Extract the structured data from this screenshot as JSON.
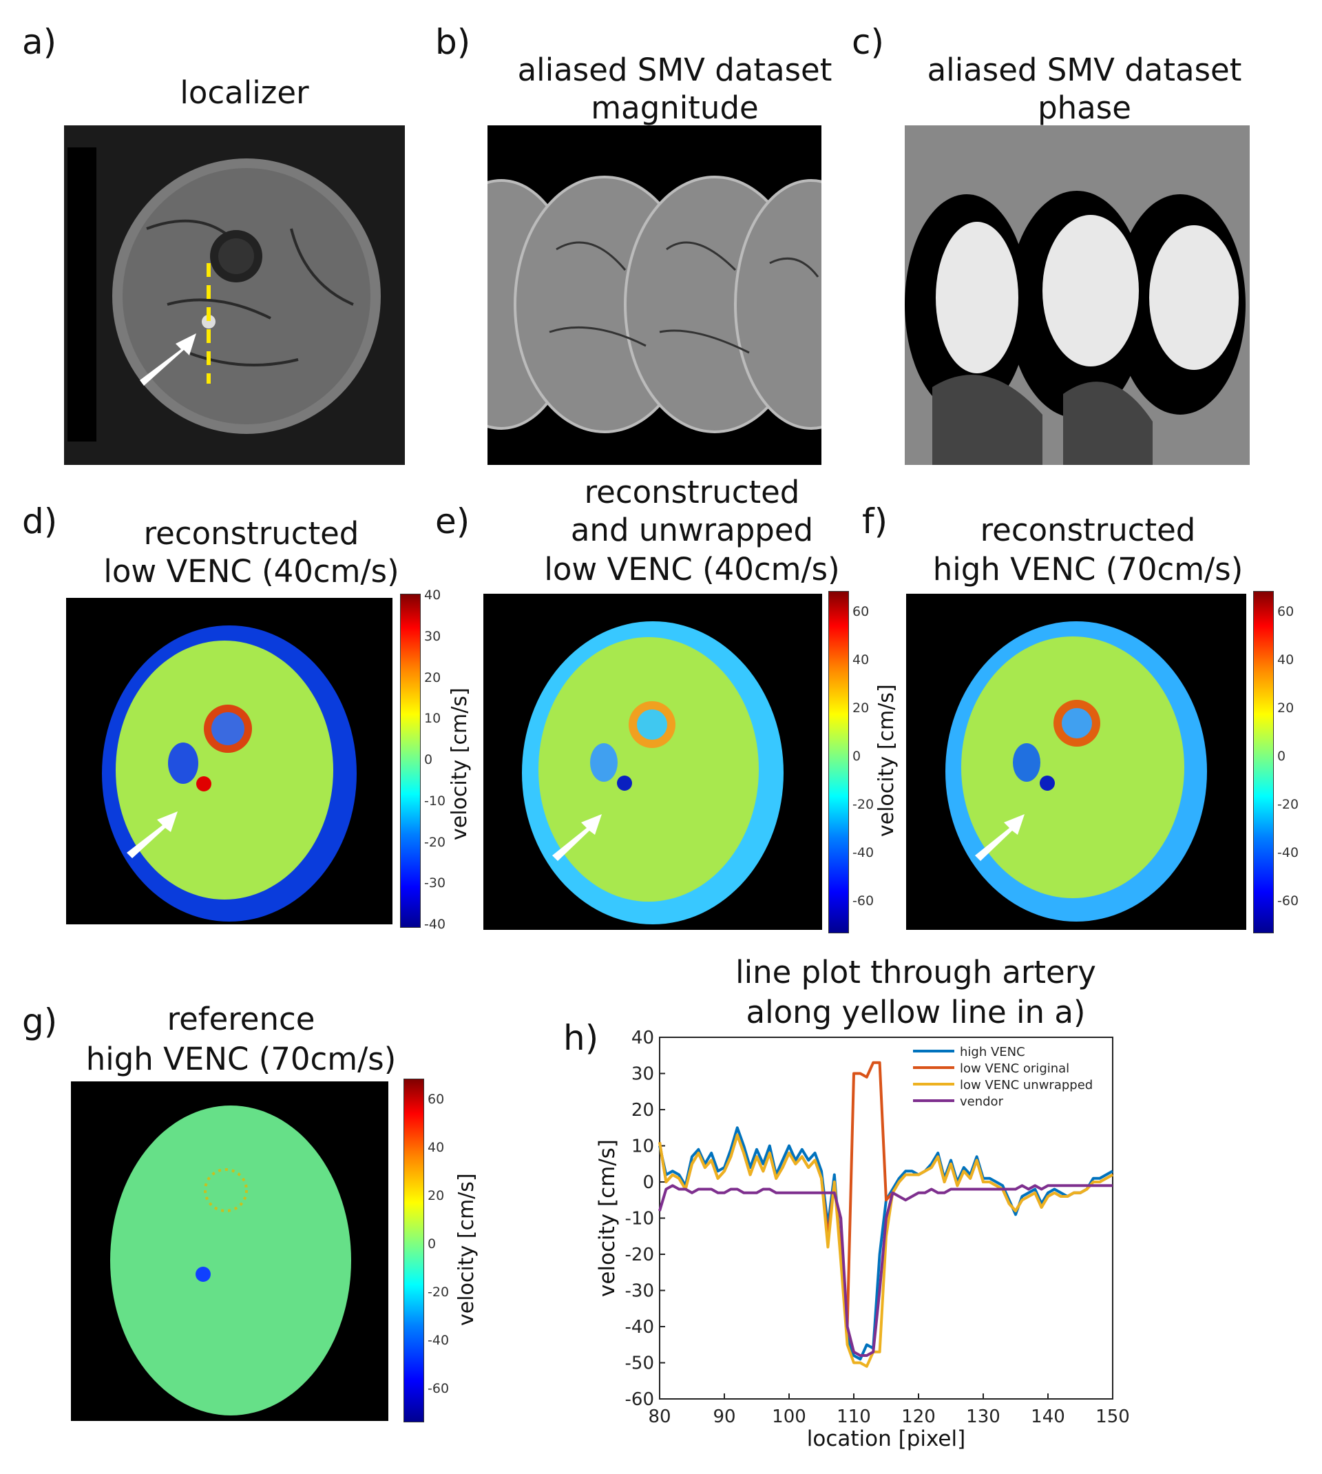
{
  "panels": {
    "a": {
      "label": "a)",
      "title": "localizer"
    },
    "b": {
      "label": "b)",
      "title_lines": [
        "aliased SMV dataset",
        "magnitude"
      ]
    },
    "c": {
      "label": "c)",
      "title_lines": [
        "aliased SMV dataset",
        "phase"
      ]
    },
    "d": {
      "label": "d)",
      "title_lines": [
        "reconstructed",
        "low VENC (40cm/s)"
      ],
      "ticks": [
        "40",
        "30",
        "20",
        "10",
        "0",
        "-10",
        "-20",
        "-30",
        "-40"
      ],
      "cbar_label": "velocity [cm/s]"
    },
    "e": {
      "label": "e)",
      "title_lines": [
        "reconstructed",
        "and unwrapped",
        "low VENC (40cm/s)"
      ],
      "ticks": [
        "60",
        "40",
        "20",
        "0",
        "-20",
        "-40",
        "-60"
      ]
    },
    "f": {
      "label": "f)",
      "title_lines": [
        "reconstructed",
        "high VENC (70cm/s)"
      ],
      "ticks": [
        "60",
        "40",
        "20",
        "0",
        "-20",
        "-40",
        "-60"
      ],
      "cbar_label": "velocity [cm/s]"
    },
    "g": {
      "label": "g)",
      "title_lines": [
        "reference",
        "high VENC (70cm/s)"
      ],
      "ticks": [
        "60",
        "40",
        "20",
        "0",
        "-20",
        "-40",
        "-60"
      ],
      "cbar_label": "velocity [cm/s]"
    },
    "h": {
      "label": "h)",
      "title_lines": [
        "line plot through artery",
        "along yellow line in a)"
      ]
    }
  },
  "chart_data": {
    "type": "line",
    "title": "line plot through artery along yellow line in a)",
    "xlabel": "location [pixel]",
    "ylabel": "velocity [cm/s]",
    "xlim": [
      80,
      150
    ],
    "ylim": [
      -60,
      40
    ],
    "xticks": [
      80,
      90,
      100,
      110,
      120,
      130,
      140,
      150
    ],
    "yticks": [
      40,
      30,
      20,
      10,
      0,
      -10,
      -20,
      -30,
      -40,
      -50,
      -60
    ],
    "legend": [
      "high VENC",
      "low VENC original",
      "low VENC unwrapped",
      "vendor"
    ],
    "colors": [
      "#0072bd",
      "#d95319",
      "#edb120",
      "#7e2f8e"
    ],
    "series": [
      {
        "name": "high VENC",
        "x": [
          80,
          81,
          82,
          83,
          84,
          85,
          86,
          87,
          88,
          89,
          90,
          91,
          92,
          93,
          94,
          95,
          96,
          97,
          98,
          99,
          100,
          101,
          102,
          103,
          104,
          105,
          106,
          107,
          108,
          109,
          110,
          111,
          112,
          113,
          114,
          115,
          116,
          117,
          118,
          119,
          120,
          121,
          122,
          123,
          124,
          125,
          126,
          127,
          128,
          129,
          130,
          131,
          132,
          133,
          134,
          135,
          136,
          137,
          138,
          139,
          140,
          141,
          142,
          143,
          144,
          145,
          146,
          147,
          148,
          149,
          150
        ],
        "y": [
          10,
          2,
          3,
          2,
          -1,
          7,
          9,
          5,
          8,
          3,
          4,
          9,
          15,
          10,
          4,
          9,
          5,
          10,
          2,
          6,
          10,
          6,
          9,
          6,
          8,
          3,
          -12,
          2,
          -20,
          -43,
          -48,
          -49,
          -45,
          -46,
          -20,
          -5,
          -2,
          1,
          3,
          3,
          2,
          3,
          5,
          8,
          1,
          6,
          0,
          4,
          2,
          7,
          1,
          1,
          0,
          -1,
          -5,
          -9,
          -4,
          -3,
          -2,
          -6,
          -3,
          -2,
          -3,
          -4,
          -3,
          -3,
          -2,
          1,
          1,
          2,
          3
        ]
      },
      {
        "name": "low VENC original",
        "x": [
          80,
          81,
          82,
          83,
          84,
          85,
          86,
          87,
          88,
          89,
          90,
          91,
          92,
          93,
          94,
          95,
          96,
          97,
          98,
          99,
          100,
          101,
          102,
          103,
          104,
          105,
          106,
          107,
          108,
          109,
          110,
          111,
          112,
          113,
          114,
          115,
          116,
          117,
          118,
          119,
          120,
          121,
          122,
          123,
          124,
          125,
          126,
          127,
          128,
          129,
          130,
          131,
          132,
          133,
          134,
          135,
          136,
          137,
          138,
          139,
          140,
          141,
          142,
          143,
          144,
          145,
          146,
          147,
          148,
          149,
          150
        ],
        "y": [
          11,
          0,
          2,
          1,
          -2,
          5,
          8,
          4,
          6,
          1,
          3,
          7,
          13,
          8,
          2,
          7,
          3,
          8,
          1,
          4,
          8,
          5,
          7,
          4,
          6,
          1,
          -15,
          0,
          -20,
          -40,
          30,
          30,
          29,
          33,
          33,
          -5,
          -3,
          0,
          2,
          2,
          2,
          3,
          4,
          7,
          0,
          5,
          -1,
          3,
          1,
          6,
          0,
          0,
          -1,
          -2,
          -6,
          -8,
          -5,
          -4,
          -3,
          -7,
          -4,
          -3,
          -4,
          -4,
          -3,
          -3,
          -2,
          0,
          0,
          1,
          2
        ]
      },
      {
        "name": "low VENC unwrapped",
        "x": [
          80,
          81,
          82,
          83,
          84,
          85,
          86,
          87,
          88,
          89,
          90,
          91,
          92,
          93,
          94,
          95,
          96,
          97,
          98,
          99,
          100,
          101,
          102,
          103,
          104,
          105,
          106,
          107,
          108,
          109,
          110,
          111,
          112,
          113,
          114,
          115,
          116,
          117,
          118,
          119,
          120,
          121,
          122,
          123,
          124,
          125,
          126,
          127,
          128,
          129,
          130,
          131,
          132,
          133,
          134,
          135,
          136,
          137,
          138,
          139,
          140,
          141,
          142,
          143,
          144,
          145,
          146,
          147,
          148,
          149,
          150
        ],
        "y": [
          11,
          0,
          2,
          1,
          -2,
          5,
          8,
          4,
          6,
          1,
          3,
          7,
          13,
          8,
          2,
          7,
          3,
          8,
          1,
          4,
          8,
          5,
          7,
          4,
          6,
          1,
          -18,
          0,
          -22,
          -45,
          -50,
          -50,
          -51,
          -47,
          -47,
          -15,
          -3,
          0,
          2,
          2,
          2,
          3,
          4,
          7,
          0,
          5,
          -1,
          3,
          1,
          6,
          0,
          0,
          -1,
          -2,
          -6,
          -8,
          -5,
          -4,
          -3,
          -7,
          -4,
          -3,
          -4,
          -4,
          -3,
          -3,
          -2,
          0,
          0,
          1,
          2
        ]
      },
      {
        "name": "vendor",
        "x": [
          80,
          81,
          82,
          83,
          84,
          85,
          86,
          87,
          88,
          89,
          90,
          91,
          92,
          93,
          94,
          95,
          96,
          97,
          98,
          99,
          100,
          101,
          102,
          103,
          104,
          105,
          106,
          107,
          108,
          109,
          110,
          111,
          112,
          113,
          114,
          115,
          116,
          117,
          118,
          119,
          120,
          121,
          122,
          123,
          124,
          125,
          126,
          127,
          128,
          129,
          130,
          131,
          132,
          133,
          134,
          135,
          136,
          137,
          138,
          139,
          140,
          141,
          142,
          143,
          144,
          145,
          146,
          147,
          148,
          149,
          150
        ],
        "y": [
          -8,
          -2,
          -1,
          -2,
          -2,
          -3,
          -2,
          -2,
          -2,
          -3,
          -3,
          -2,
          -2,
          -3,
          -3,
          -3,
          -2,
          -2,
          -3,
          -3,
          -3,
          -3,
          -3,
          -3,
          -3,
          -3,
          -3,
          -3,
          -10,
          -40,
          -47,
          -48,
          -48,
          -47,
          -30,
          -10,
          -3,
          -4,
          -5,
          -4,
          -3,
          -3,
          -2,
          -3,
          -3,
          -2,
          -2,
          -2,
          -2,
          -2,
          -2,
          -2,
          -2,
          -2,
          -2,
          -2,
          -1,
          -2,
          -1,
          -2,
          -1,
          -1,
          -1,
          -1,
          -1,
          -1,
          -1,
          -1,
          -1,
          -1,
          -1
        ]
      }
    ]
  }
}
